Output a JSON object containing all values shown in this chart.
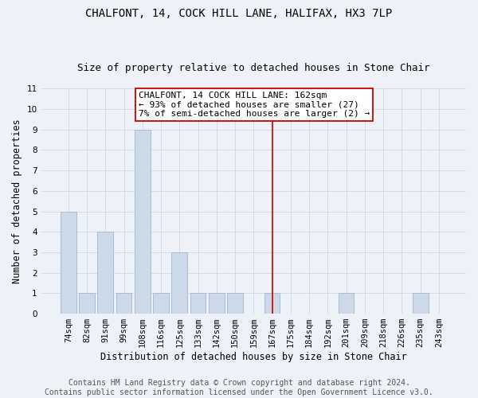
{
  "title": "CHALFONT, 14, COCK HILL LANE, HALIFAX, HX3 7LP",
  "subtitle": "Size of property relative to detached houses in Stone Chair",
  "xlabel": "Distribution of detached houses by size in Stone Chair",
  "ylabel": "Number of detached properties",
  "footer_line1": "Contains HM Land Registry data © Crown copyright and database right 2024.",
  "footer_line2": "Contains public sector information licensed under the Open Government Licence v3.0.",
  "categories": [
    "74sqm",
    "82sqm",
    "91sqm",
    "99sqm",
    "108sqm",
    "116sqm",
    "125sqm",
    "133sqm",
    "142sqm",
    "150sqm",
    "159sqm",
    "167sqm",
    "175sqm",
    "184sqm",
    "192sqm",
    "201sqm",
    "209sqm",
    "218sqm",
    "226sqm",
    "235sqm",
    "243sqm"
  ],
  "values": [
    5,
    1,
    4,
    1,
    9,
    1,
    3,
    1,
    1,
    1,
    0,
    1,
    0,
    0,
    0,
    1,
    0,
    0,
    0,
    1,
    0
  ],
  "bar_color": "#ccd9e8",
  "bar_edge_color": "#aabbd0",
  "highlight_index": 11,
  "highlight_color": "#cc0000",
  "ylim": [
    0,
    11
  ],
  "yticks": [
    0,
    1,
    2,
    3,
    4,
    5,
    6,
    7,
    8,
    9,
    10,
    11
  ],
  "annotation_text": "CHALFONT, 14 COCK HILL LANE: 162sqm\n← 93% of detached houses are smaller (27)\n7% of semi-detached houses are larger (2) →",
  "annotation_box_color": "#ffffff",
  "annotation_box_edge": "#cc0000",
  "grid_color": "#d0d8e0",
  "background_color": "#edf2f8",
  "title_fontsize": 10,
  "subtitle_fontsize": 9,
  "axis_label_fontsize": 8.5,
  "tick_fontsize": 7.5,
  "annotation_fontsize": 8,
  "footer_fontsize": 7
}
